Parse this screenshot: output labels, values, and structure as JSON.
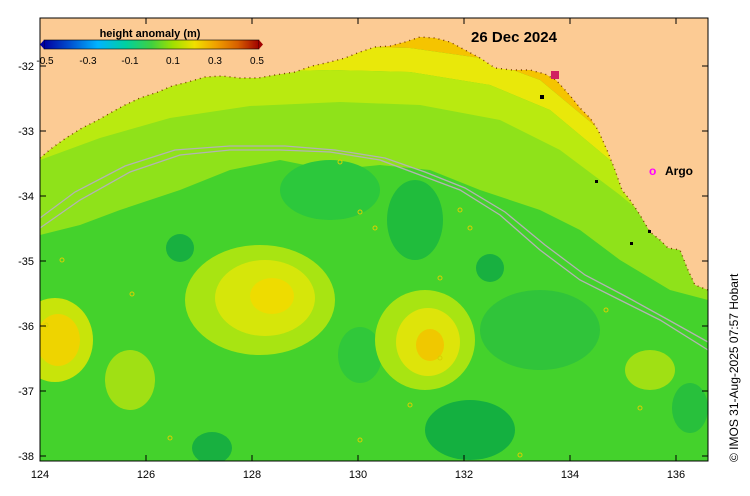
{
  "title": {
    "date": "26 Dec 2024"
  },
  "colorbar": {
    "label": "height anomaly (m)",
    "ticks": [
      "-0.5",
      "-0.3",
      "-0.1",
      "0.1",
      "0.3",
      "0.5"
    ]
  },
  "legend": {
    "argo_symbol": "o",
    "argo_label": "Argo"
  },
  "credit": "© IMOS 31-Aug-2025 07:57 Hobart",
  "axes": {
    "x_ticks": [
      "124",
      "126",
      "128",
      "130",
      "132",
      "134",
      "136"
    ],
    "y_ticks": [
      "-32",
      "-33",
      "-34",
      "-35",
      "-36",
      "-37",
      "-38"
    ],
    "xlim": [
      124,
      136.5
    ],
    "ylim": [
      -38.1,
      -31.3
    ]
  },
  "colors": {
    "land": "#fccb94",
    "argo_marker": "#ff00ff",
    "track_line": "#b3b3b3"
  },
  "chart_data": {
    "type": "heatmap",
    "variable": "height anomaly (m)",
    "scale_range": [
      -0.5,
      0.5
    ],
    "date": "26 Dec 2024"
  }
}
